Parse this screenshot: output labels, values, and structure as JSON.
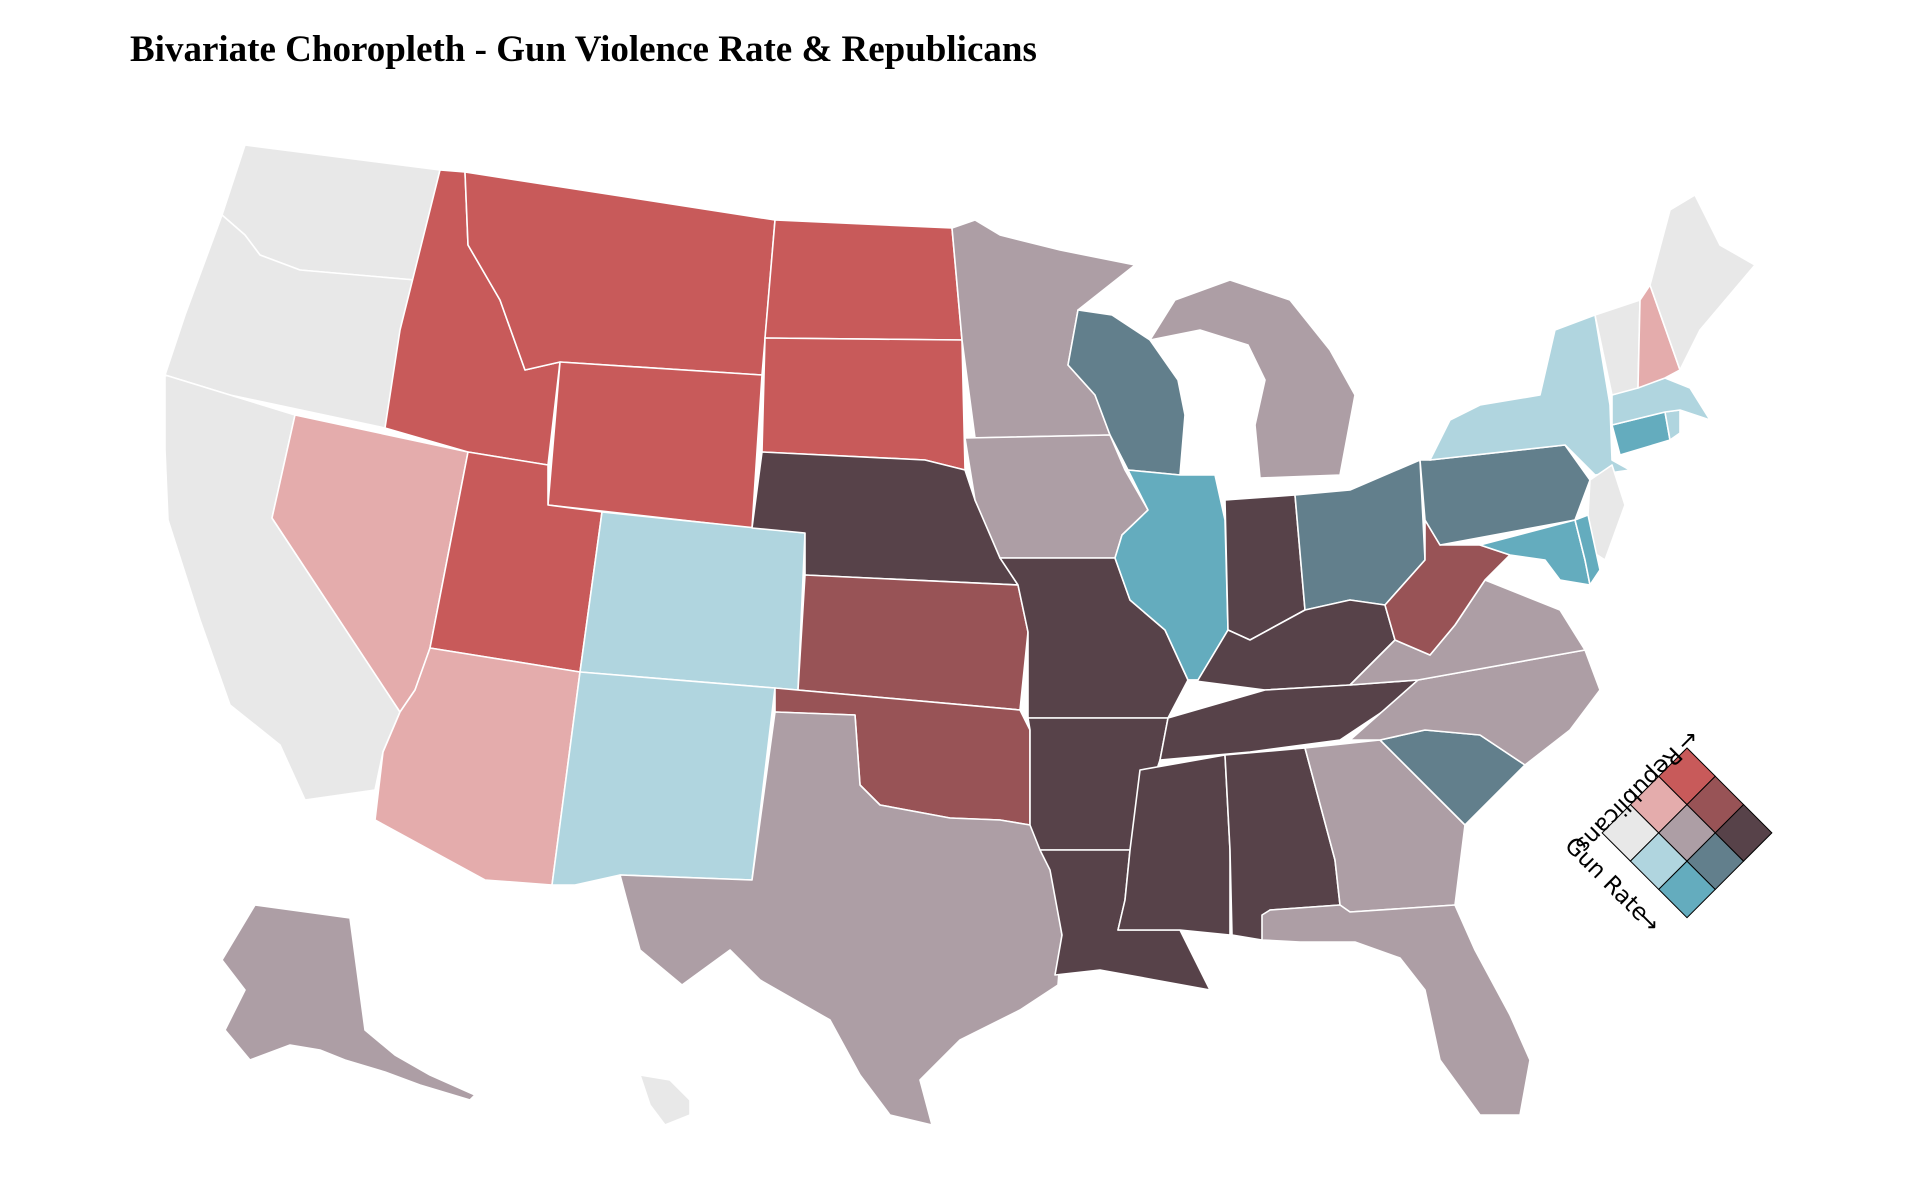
{
  "title": "Bivariate Choropleth - Gun Violence Rate & Republicans",
  "legend": {
    "x_label": "Gun Rate",
    "y_label": "Republicans",
    "grid": [
      [
        "#e8e8e8",
        "#b0d5df",
        "#64acbe"
      ],
      [
        "#e4acac",
        "#ad9ea5",
        "#627f8c"
      ],
      [
        "#c85a5a",
        "#985356",
        "#574249"
      ]
    ]
  },
  "classes": {
    "low_low": "#e8e8e8",
    "low_mid": "#b0d5df",
    "low_high": "#64acbe",
    "mid_low": "#e4acac",
    "mid_mid": "#ad9ea5",
    "mid_high": "#627f8c",
    "high_low": "#c85a5a",
    "high_mid": "#985356",
    "high_high": "#574249"
  },
  "states": [
    {
      "id": "WA",
      "name": "Washington",
      "class": "low_low"
    },
    {
      "id": "OR",
      "name": "Oregon",
      "class": "low_low"
    },
    {
      "id": "CA",
      "name": "California",
      "class": "low_low"
    },
    {
      "id": "NV",
      "name": "Nevada",
      "class": "mid_low"
    },
    {
      "id": "ID",
      "name": "Idaho",
      "class": "high_low"
    },
    {
      "id": "MT",
      "name": "Montana",
      "class": "high_low"
    },
    {
      "id": "WY",
      "name": "Wyoming",
      "class": "high_low"
    },
    {
      "id": "UT",
      "name": "Utah",
      "class": "high_low"
    },
    {
      "id": "AZ",
      "name": "Arizona",
      "class": "mid_low"
    },
    {
      "id": "CO",
      "name": "Colorado",
      "class": "low_mid"
    },
    {
      "id": "NM",
      "name": "New Mexico",
      "class": "low_mid"
    },
    {
      "id": "ND",
      "name": "North Dakota",
      "class": "high_low"
    },
    {
      "id": "SD",
      "name": "South Dakota",
      "class": "high_low"
    },
    {
      "id": "NE",
      "name": "Nebraska",
      "class": "high_high"
    },
    {
      "id": "KS",
      "name": "Kansas",
      "class": "high_mid"
    },
    {
      "id": "OK",
      "name": "Oklahoma",
      "class": "high_mid"
    },
    {
      "id": "TX",
      "name": "Texas",
      "class": "mid_mid"
    },
    {
      "id": "MN",
      "name": "Minnesota",
      "class": "mid_mid"
    },
    {
      "id": "IA",
      "name": "Iowa",
      "class": "mid_mid"
    },
    {
      "id": "MO",
      "name": "Missouri",
      "class": "high_high"
    },
    {
      "id": "AR",
      "name": "Arkansas",
      "class": "high_high"
    },
    {
      "id": "LA",
      "name": "Louisiana",
      "class": "high_high"
    },
    {
      "id": "WI",
      "name": "Wisconsin",
      "class": "mid_high"
    },
    {
      "id": "IL",
      "name": "Illinois",
      "class": "low_high"
    },
    {
      "id": "MI",
      "name": "Michigan",
      "class": "mid_mid"
    },
    {
      "id": "IN",
      "name": "Indiana",
      "class": "high_high"
    },
    {
      "id": "OH",
      "name": "Ohio",
      "class": "mid_high"
    },
    {
      "id": "KY",
      "name": "Kentucky",
      "class": "high_high"
    },
    {
      "id": "TN",
      "name": "Tennessee",
      "class": "high_high"
    },
    {
      "id": "MS",
      "name": "Mississippi",
      "class": "high_high"
    },
    {
      "id": "AL",
      "name": "Alabama",
      "class": "high_high"
    },
    {
      "id": "GA",
      "name": "Georgia",
      "class": "mid_mid"
    },
    {
      "id": "FL",
      "name": "Florida",
      "class": "mid_mid"
    },
    {
      "id": "SC",
      "name": "South Carolina",
      "class": "mid_high"
    },
    {
      "id": "NC",
      "name": "North Carolina",
      "class": "mid_mid"
    },
    {
      "id": "VA",
      "name": "Virginia",
      "class": "mid_mid"
    },
    {
      "id": "WV",
      "name": "West Virginia",
      "class": "high_mid"
    },
    {
      "id": "PA",
      "name": "Pennsylvania",
      "class": "mid_high"
    },
    {
      "id": "NY",
      "name": "New York",
      "class": "low_mid"
    },
    {
      "id": "NJ",
      "name": "New Jersey",
      "class": "low_low"
    },
    {
      "id": "MD",
      "name": "Maryland",
      "class": "low_high"
    },
    {
      "id": "DE",
      "name": "Delaware",
      "class": "low_high"
    },
    {
      "id": "CT",
      "name": "Connecticut",
      "class": "low_high"
    },
    {
      "id": "RI",
      "name": "Rhode Island",
      "class": "low_mid"
    },
    {
      "id": "MA",
      "name": "Massachusetts",
      "class": "low_mid"
    },
    {
      "id": "VT",
      "name": "Vermont",
      "class": "low_low"
    },
    {
      "id": "NH",
      "name": "New Hampshire",
      "class": "mid_low"
    },
    {
      "id": "ME",
      "name": "Maine",
      "class": "low_low"
    },
    {
      "id": "AK",
      "name": "Alaska",
      "class": "mid_mid"
    },
    {
      "id": "HI",
      "name": "Hawaii",
      "class": "low_low"
    }
  ]
}
